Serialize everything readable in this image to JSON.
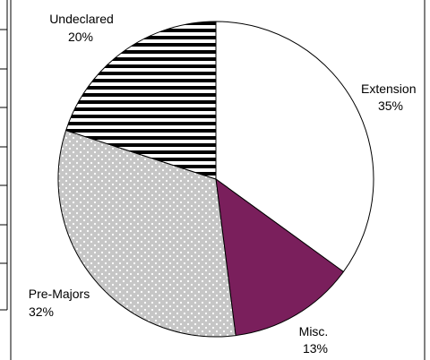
{
  "chart_data": {
    "type": "pie",
    "slices": [
      {
        "label": "Extension",
        "value": 35,
        "value_text": "35%",
        "color": "#ffffff",
        "pattern": "none"
      },
      {
        "label": "Misc.",
        "value": 13,
        "value_text": "13%",
        "color": "#7a1f5c",
        "pattern": "none"
      },
      {
        "label": "Pre-Majors",
        "value": 32,
        "value_text": "32%",
        "color": "#c8c8c8",
        "pattern": "dots"
      },
      {
        "label": "Undeclared",
        "value": 20,
        "value_text": "20%",
        "color": "#ffffff",
        "pattern": "horizontal-stripes"
      }
    ],
    "start_angle_deg": 0,
    "direction": "clockwise",
    "legend": "none"
  }
}
